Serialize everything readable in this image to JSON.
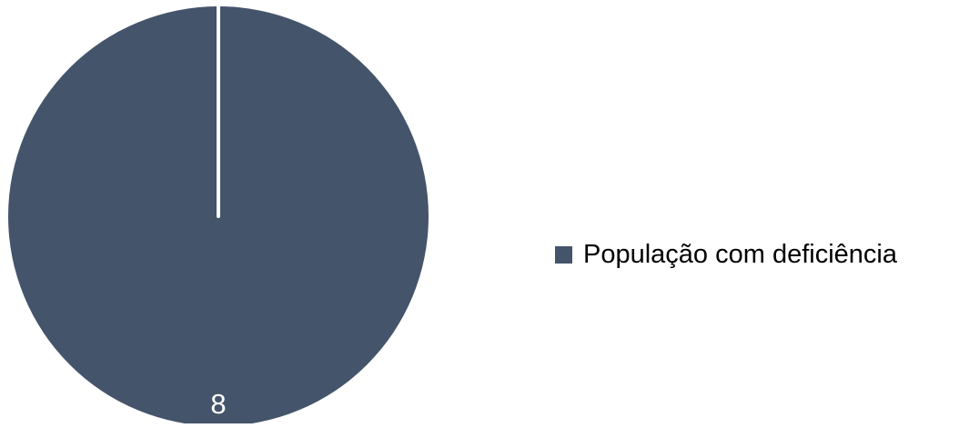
{
  "chart_data": {
    "type": "pie",
    "series": [
      {
        "name": "População com deficiência",
        "values": [
          8,
          0
        ]
      }
    ],
    "slices": [
      {
        "label": "População com deficiência",
        "value": 8,
        "data_label": "8",
        "color": "#44546A"
      }
    ],
    "legend": {
      "placement": "right",
      "entries": [
        "População com deficiência"
      ]
    },
    "colors": {
      "slice": "#44546A",
      "separator": "#FFFFFF",
      "data_label": "#FFFFFF"
    }
  }
}
